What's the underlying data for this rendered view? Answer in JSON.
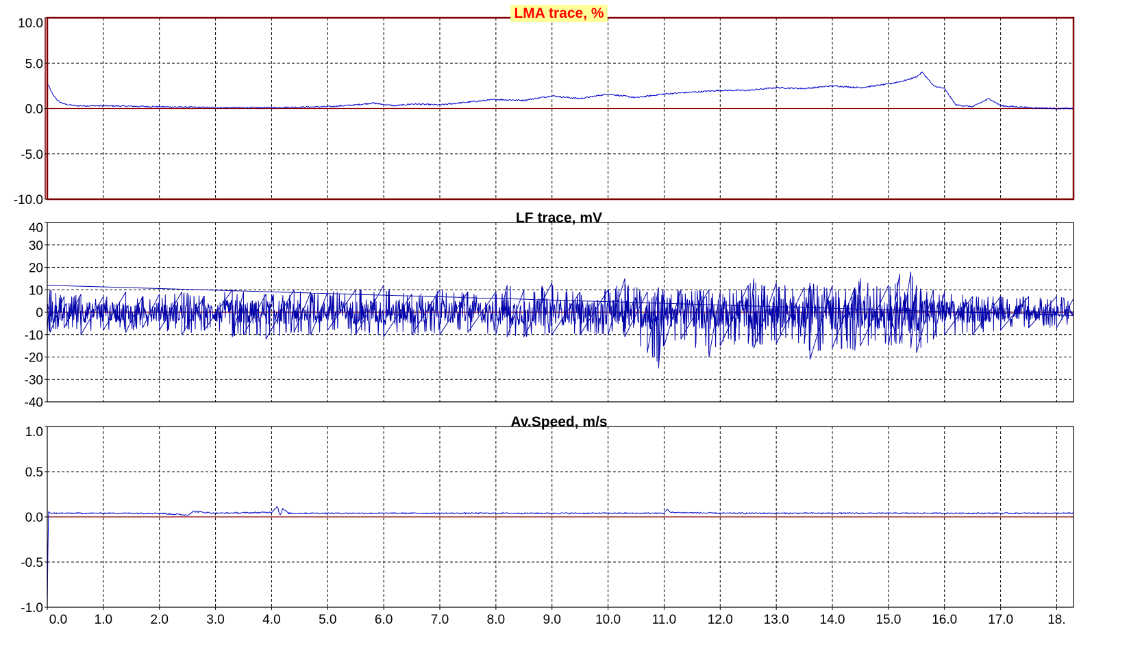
{
  "chart_data": [
    {
      "type": "line",
      "title": "LMA trace, %",
      "title_color": "#ff0000",
      "title_bg": "#ffff99",
      "frame_color": "#800000",
      "selected": true,
      "xlim": [
        0,
        18.3
      ],
      "ylim": [
        -10,
        10
      ],
      "yticks": [
        10,
        5,
        0,
        -5,
        -10
      ],
      "ytick_labels": [
        "10.0",
        "5.0",
        "0.0",
        "-5.0",
        "-10.0"
      ],
      "grid": true,
      "zero_line": true,
      "series": [
        {
          "color": "#0000cc",
          "x": [
            0.0,
            0.1,
            0.2,
            0.3,
            0.5,
            1.0,
            2.0,
            3.0,
            4.0,
            5.0,
            5.5,
            5.8,
            6.2,
            6.5,
            7.0,
            7.5,
            8.0,
            8.5,
            9.0,
            9.3,
            9.5,
            10.0,
            10.5,
            11.0,
            11.5,
            12.0,
            12.5,
            13.0,
            13.5,
            14.0,
            14.5,
            15.0,
            15.3,
            15.5,
            15.6,
            15.7,
            15.8,
            16.0,
            16.2,
            16.5,
            16.7,
            16.8,
            17.0,
            17.5,
            18.0,
            18.3
          ],
          "y": [
            2.8,
            1.5,
            0.8,
            0.5,
            0.3,
            0.3,
            0.2,
            0.1,
            0.1,
            0.2,
            0.4,
            0.6,
            0.3,
            0.5,
            0.4,
            0.7,
            1.0,
            0.9,
            1.4,
            1.2,
            1.1,
            1.6,
            1.2,
            1.6,
            1.8,
            2.0,
            2.0,
            2.3,
            2.2,
            2.5,
            2.3,
            2.7,
            3.1,
            3.5,
            4.0,
            3.3,
            2.5,
            2.2,
            0.4,
            0.2,
            0.8,
            1.1,
            0.3,
            0.1,
            0.0,
            0.0
          ]
        }
      ]
    },
    {
      "type": "line",
      "title": "LF trace, mV",
      "title_color": "#000000",
      "title_bg": "",
      "frame_color": "#000000",
      "selected": false,
      "xlim": [
        0,
        18.3
      ],
      "ylim": [
        -40,
        40
      ],
      "yticks": [
        40,
        30,
        20,
        10,
        0,
        -10,
        -20,
        -30,
        -40
      ],
      "ytick_labels": [
        "40",
        "30",
        "20",
        "10",
        "0",
        "-10",
        "-20",
        "-30",
        "-40"
      ],
      "grid": true,
      "zero_line": true,
      "series": [
        {
          "color": "#0000aa",
          "x": [
            0.0,
            0.05,
            0.3,
            0.6,
            1.0,
            1.4,
            1.7,
            2.0,
            2.4,
            2.8,
            3.3,
            3.5,
            3.9,
            4.4,
            4.7,
            5.0,
            5.5,
            6.0,
            6.5,
            7.0,
            7.5,
            8.0,
            8.2,
            8.5,
            9.0,
            9.5,
            10.0,
            10.3,
            10.7,
            10.9,
            11.0,
            11.3,
            11.8,
            12.0,
            12.5,
            12.6,
            13.0,
            13.5,
            13.6,
            14.0,
            14.4,
            14.5,
            15.0,
            15.2,
            15.4,
            15.5,
            15.8,
            16.0,
            16.5,
            17.0,
            17.5,
            18.0,
            18.3
          ],
          "y_max": [
            12,
            10,
            7,
            8,
            7,
            9,
            7,
            8,
            9,
            7,
            10,
            9,
            8,
            10,
            9,
            9,
            10,
            12,
            8,
            10,
            9,
            9,
            12,
            10,
            13,
            9,
            10,
            15,
            9,
            11,
            10,
            10,
            10,
            9,
            12,
            15,
            13,
            11,
            13,
            12,
            11,
            15,
            12,
            17,
            18,
            12,
            10,
            9,
            7,
            7,
            7,
            7,
            6
          ],
          "y_min": [
            -8,
            -9,
            -7,
            -10,
            -8,
            -9,
            -7,
            -8,
            -10,
            -8,
            -11,
            -10,
            -12,
            -9,
            -10,
            -8,
            -10,
            -11,
            -10,
            -10,
            -9,
            -10,
            -11,
            -11,
            -10,
            -10,
            -10,
            -11,
            -18,
            -25,
            -15,
            -12,
            -20,
            -15,
            -14,
            -16,
            -14,
            -14,
            -21,
            -16,
            -17,
            -15,
            -15,
            -14,
            -16,
            -18,
            -12,
            -10,
            -10,
            -8,
            -7,
            -7,
            -6
          ]
        }
      ]
    },
    {
      "type": "line",
      "title": "Av.Speed, m/s",
      "title_color": "#000000",
      "title_bg": "",
      "frame_color": "#000000",
      "selected": false,
      "xlim": [
        0,
        18.3
      ],
      "ylim": [
        -1,
        1
      ],
      "yticks": [
        1,
        0.5,
        0,
        -0.5,
        -1
      ],
      "ytick_labels": [
        "1.0",
        "0.5",
        "0.0",
        "-0.5",
        "-1.0"
      ],
      "grid": true,
      "zero_line": true,
      "xticks": [
        0,
        1,
        2,
        3,
        4,
        5,
        6,
        7,
        8,
        9,
        10,
        11,
        12,
        13,
        14,
        15,
        16,
        17,
        18
      ],
      "xtick_labels": [
        "0.0",
        "1.0",
        "2.0",
        "3.0",
        "4.0",
        "5.0",
        "6.0",
        "7.0",
        "8.0",
        "9.0",
        "10.0",
        "11.0",
        "12.0",
        "13.0",
        "14.0",
        "15.0",
        "16.0",
        "17.0",
        "18."
      ],
      "series": [
        {
          "color": "#0000cc",
          "x": [
            0.0,
            0.02,
            0.1,
            1.0,
            2.0,
            2.5,
            2.6,
            3.0,
            4.0,
            4.1,
            4.15,
            4.2,
            4.3,
            5.0,
            6.0,
            7.0,
            8.0,
            9.0,
            10.0,
            11.0,
            11.05,
            11.1,
            12.0,
            13.0,
            14.0,
            15.0,
            16.0,
            17.0,
            18.0,
            18.3
          ],
          "y": [
            -1.0,
            0.05,
            0.04,
            0.04,
            0.04,
            0.02,
            0.06,
            0.04,
            0.05,
            0.12,
            0.02,
            0.09,
            0.04,
            0.04,
            0.04,
            0.04,
            0.04,
            0.04,
            0.04,
            0.04,
            0.09,
            0.05,
            0.04,
            0.04,
            0.04,
            0.04,
            0.04,
            0.04,
            0.04,
            0.04
          ]
        }
      ]
    }
  ]
}
